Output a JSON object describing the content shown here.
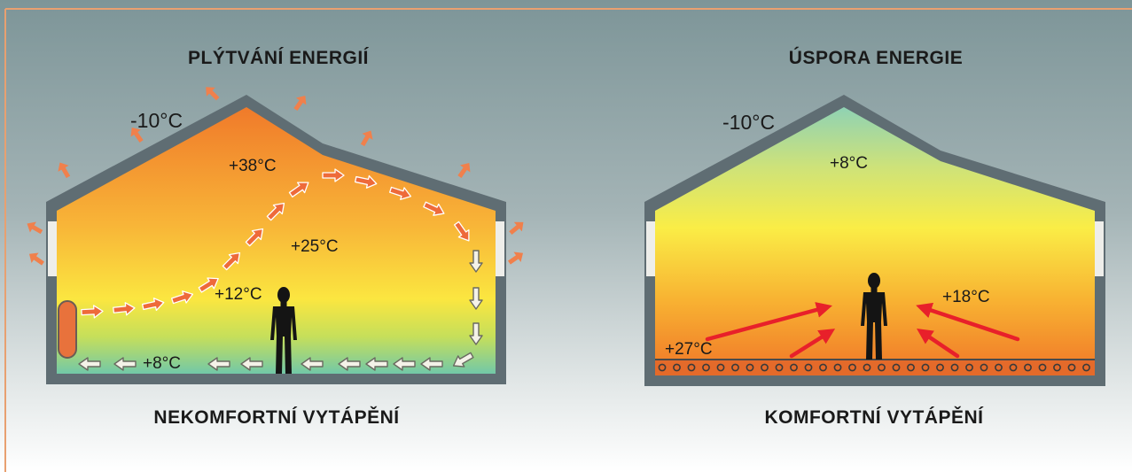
{
  "left_panel": {
    "title": "PLÝTVÁNÍ ENERGIÍ",
    "caption": "NEKOMFORTNÍ VYTÁPĚNÍ",
    "temps": {
      "outside": "-10°C",
      "top": "+38°C",
      "middle": "+25°C",
      "person": "+12°C",
      "floor": "+8°C"
    }
  },
  "right_panel": {
    "title": "ÚSPORA ENERGIE",
    "caption": "KOMFORTNÍ VYTÁPĚNÍ",
    "temps": {
      "outside": "-10°C",
      "top": "+8°C",
      "person": "+18°C",
      "floor": "+27°C"
    }
  },
  "colors": {
    "border_accent": "#e8a070",
    "wall": "#5f6d73",
    "warm": "#f07a2a",
    "hot_air_arrow": "#ee6a3a",
    "radiant_arrow": "#e8202a"
  }
}
